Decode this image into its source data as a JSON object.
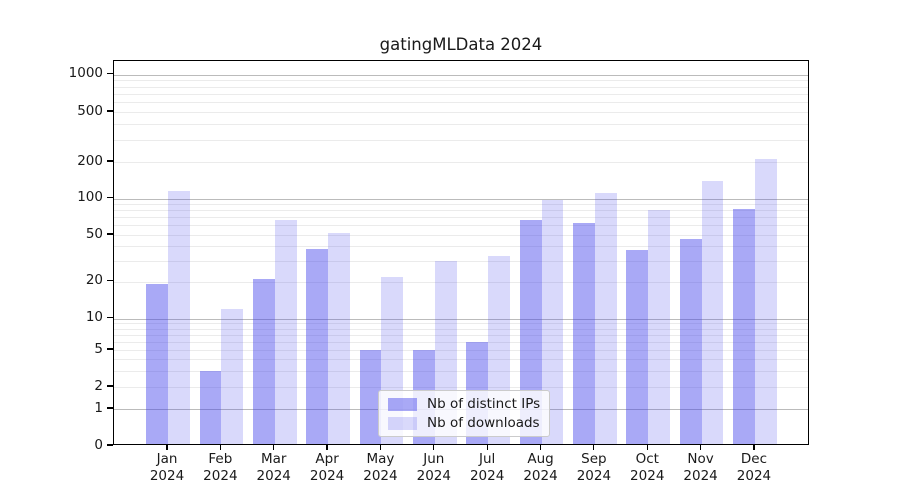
{
  "title": "gatingMLData 2024",
  "chart_data": {
    "type": "bar",
    "title": "gatingMLData 2024",
    "x_categories": [
      "Jan 2024",
      "Feb 2024",
      "Mar 2024",
      "Apr 2024",
      "May 2024",
      "Jun 2024",
      "Jul 2024",
      "Aug 2024",
      "Sep 2024",
      "Oct 2024",
      "Nov 2024",
      "Dec 2024"
    ],
    "series": [
      {
        "name": "Nb of distinct IPs",
        "color": "rgba(64,64,234,0.45)",
        "values": [
          19,
          3,
          21,
          38,
          5,
          5,
          6,
          66,
          63,
          37,
          46,
          82
        ]
      },
      {
        "name": "Nb of downloads",
        "color": "rgba(64,64,234,0.20)",
        "values": [
          115,
          12,
          66,
          52,
          22,
          30,
          33,
          98,
          110,
          80,
          140,
          210
        ]
      }
    ],
    "y_axis": {
      "scale": "log-like with zero baseline",
      "ticks": [
        0,
        1,
        2,
        5,
        10,
        20,
        50,
        100,
        200,
        500,
        1000
      ],
      "major_gridlines": [
        1,
        10,
        100,
        1000
      ],
      "minor_gridlines": [
        2,
        3,
        4,
        5,
        6,
        7,
        8,
        9,
        20,
        30,
        40,
        50,
        60,
        70,
        80,
        90,
        200,
        300,
        400,
        500,
        600,
        700,
        800,
        900
      ],
      "range": [
        0,
        1000
      ]
    },
    "x_axis": {
      "year_line": "2024"
    },
    "legend": {
      "position": "lower center",
      "entries": [
        "Nb of distinct IPs",
        "Nb of downloads"
      ]
    },
    "grid": "horizontal",
    "colors": {
      "bar_distinct_ips": "rgba(64,64,234,0.45)",
      "bar_downloads": "rgba(64,64,234,0.20)",
      "grid_major": "#bbbbbb",
      "grid_minor": "#ebebeb",
      "text": "#1a1a1a"
    }
  }
}
